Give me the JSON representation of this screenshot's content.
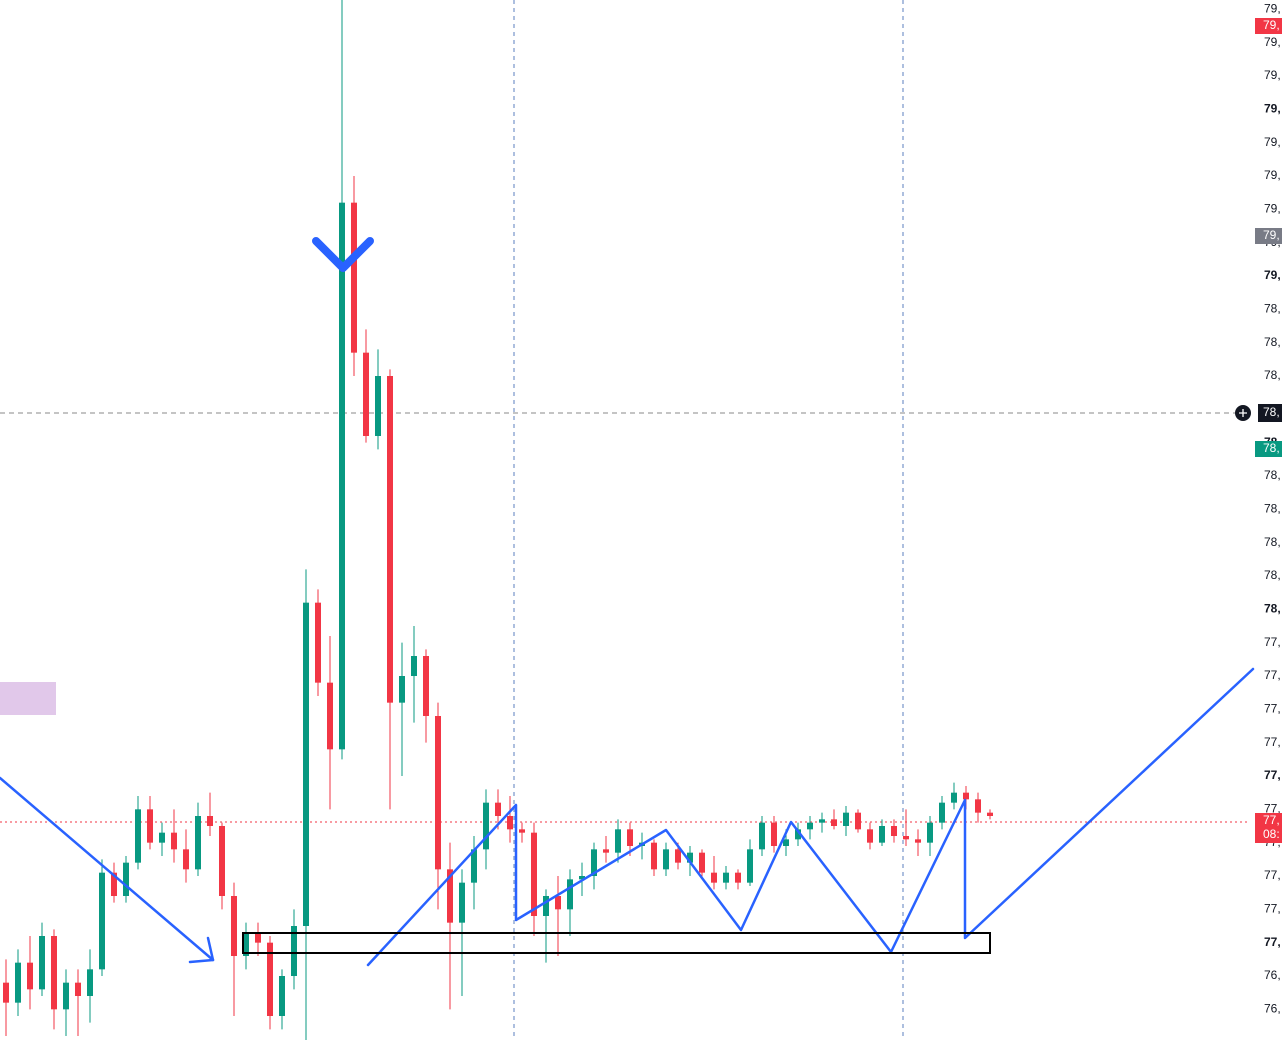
{
  "chart_data": {
    "type": "candlestick",
    "up_color": "#089981",
    "down_color": "#f23645",
    "ylim": [
      76.708,
      79.828
    ],
    "yticks": [
      {
        "value": 79.8,
        "label": "79,"
      },
      {
        "value": 79.7,
        "label": "79,"
      },
      {
        "value": 79.6,
        "label": "79,"
      },
      {
        "value": 79.5,
        "label": "79,"
      },
      {
        "value": 79.4,
        "label": "79,"
      },
      {
        "value": 79.3,
        "label": "79,"
      },
      {
        "value": 79.2,
        "label": "79,"
      },
      {
        "value": 79.1,
        "label": "79,"
      },
      {
        "value": 79.0,
        "label": "79,"
      },
      {
        "value": 78.9,
        "label": "78,"
      },
      {
        "value": 78.8,
        "label": "78,"
      },
      {
        "value": 78.7,
        "label": "78,"
      },
      {
        "value": 78.6,
        "label": "78,"
      },
      {
        "value": 78.5,
        "label": "78,"
      },
      {
        "value": 78.4,
        "label": "78,"
      },
      {
        "value": 78.3,
        "label": "78,"
      },
      {
        "value": 78.2,
        "label": "78,"
      },
      {
        "value": 78.1,
        "label": "78,"
      },
      {
        "value": 78.0,
        "label": "78,"
      },
      {
        "value": 77.9,
        "label": "77,"
      },
      {
        "value": 77.8,
        "label": "77,"
      },
      {
        "value": 77.7,
        "label": "77,"
      },
      {
        "value": 77.6,
        "label": "77,"
      },
      {
        "value": 77.5,
        "label": "77,"
      },
      {
        "value": 77.4,
        "label": "77,"
      },
      {
        "value": 77.3,
        "label": "77,"
      },
      {
        "value": 77.2,
        "label": "77,"
      },
      {
        "value": 77.1,
        "label": "77,"
      },
      {
        "value": 77.0,
        "label": "77,"
      },
      {
        "value": 76.9,
        "label": "76,"
      },
      {
        "value": 76.8,
        "label": "76,"
      }
    ],
    "badges": [
      "79,",
      "79,",
      "78,",
      "78,",
      "77,",
      "08:"
    ],
    "open": [
      76.88,
      76.82,
      76.94,
      76.86,
      77.02,
      76.8,
      76.88,
      76.84,
      76.92,
      77.21,
      77.14,
      77.24,
      77.4,
      77.3,
      77.33,
      77.28,
      77.22,
      77.38,
      77.35,
      77.14,
      76.96,
      77.03,
      77.0,
      76.78,
      76.9,
      77.05,
      78.02,
      77.78,
      77.58,
      79.22,
      78.77,
      78.52,
      78.7,
      77.72,
      77.8,
      77.86,
      77.68,
      77.22,
      77.06,
      77.18,
      77.28,
      77.42,
      77.38,
      77.34,
      77.33,
      77.08,
      77.14,
      77.1,
      77.19,
      77.2,
      77.28,
      77.27,
      77.34,
      77.29,
      77.3,
      77.22,
      77.28,
      77.24,
      77.27,
      77.21,
      77.18,
      77.21,
      77.18,
      77.28,
      77.36,
      77.29,
      77.31,
      77.34,
      77.36,
      77.37,
      77.35,
      77.39,
      77.34,
      77.3,
      77.35,
      77.32,
      77.31,
      77.3,
      77.36,
      77.42,
      77.45,
      77.43,
      77.39
    ],
    "high": [
      76.95,
      76.98,
      77.02,
      77.06,
      77.04,
      76.92,
      76.92,
      76.98,
      77.25,
      77.24,
      77.26,
      77.44,
      77.44,
      77.36,
      77.4,
      77.34,
      77.42,
      77.45,
      77.36,
      77.18,
      77.06,
      77.06,
      77.02,
      76.92,
      77.1,
      78.12,
      78.06,
      77.92,
      79.83,
      79.3,
      78.84,
      78.78,
      78.72,
      77.9,
      77.95,
      77.88,
      77.72,
      77.3,
      77.22,
      77.32,
      77.46,
      77.46,
      77.44,
      77.36,
      77.36,
      77.16,
      77.2,
      77.22,
      77.24,
      77.3,
      77.32,
      77.37,
      77.36,
      77.33,
      77.31,
      77.3,
      77.3,
      77.29,
      77.28,
      77.26,
      77.23,
      77.22,
      77.31,
      77.38,
      77.38,
      77.34,
      77.36,
      77.38,
      77.39,
      77.4,
      77.41,
      77.4,
      77.36,
      77.37,
      77.37,
      77.4,
      77.34,
      77.38,
      77.44,
      77.48,
      77.47,
      77.45,
      77.4
    ],
    "low": [
      76.72,
      76.78,
      76.8,
      76.84,
      76.74,
      76.72,
      76.72,
      76.76,
      76.9,
      77.12,
      77.12,
      77.22,
      77.28,
      77.26,
      77.24,
      77.18,
      77.2,
      77.32,
      77.1,
      76.78,
      76.92,
      76.96,
      76.74,
      76.74,
      76.86,
      76.7,
      77.74,
      77.4,
      77.55,
      78.7,
      78.5,
      78.48,
      77.4,
      77.5,
      77.66,
      77.6,
      77.1,
      76.8,
      76.84,
      77.1,
      77.22,
      77.34,
      77.3,
      77.3,
      77.02,
      76.94,
      76.96,
      77.02,
      77.14,
      77.16,
      77.24,
      77.24,
      77.26,
      77.25,
      77.2,
      77.2,
      77.22,
      77.2,
      77.19,
      77.16,
      77.16,
      77.16,
      77.17,
      77.26,
      77.27,
      77.26,
      77.29,
      77.31,
      77.33,
      77.34,
      77.32,
      77.33,
      77.28,
      77.29,
      77.3,
      77.29,
      77.26,
      77.26,
      77.34,
      77.4,
      77.4,
      77.36,
      77.37
    ],
    "close": [
      76.82,
      76.94,
      76.86,
      77.02,
      76.8,
      76.88,
      76.84,
      76.92,
      77.21,
      77.14,
      77.24,
      77.4,
      77.3,
      77.33,
      77.28,
      77.22,
      77.38,
      77.35,
      77.14,
      76.96,
      77.03,
      77.0,
      76.78,
      76.9,
      77.05,
      78.02,
      77.78,
      77.58,
      79.22,
      78.77,
      78.52,
      78.7,
      77.72,
      77.8,
      77.86,
      77.68,
      77.22,
      77.06,
      77.18,
      77.28,
      77.42,
      77.38,
      77.34,
      77.33,
      77.08,
      77.14,
      77.1,
      77.19,
      77.2,
      77.28,
      77.27,
      77.34,
      77.29,
      77.3,
      77.22,
      77.28,
      77.24,
      77.27,
      77.21,
      77.18,
      77.21,
      77.18,
      77.28,
      77.36,
      77.29,
      77.31,
      77.34,
      77.36,
      77.37,
      77.35,
      77.39,
      77.34,
      77.3,
      77.35,
      77.32,
      77.31,
      77.3,
      77.36,
      77.42,
      77.45,
      77.43,
      77.39,
      77.38
    ]
  }
}
